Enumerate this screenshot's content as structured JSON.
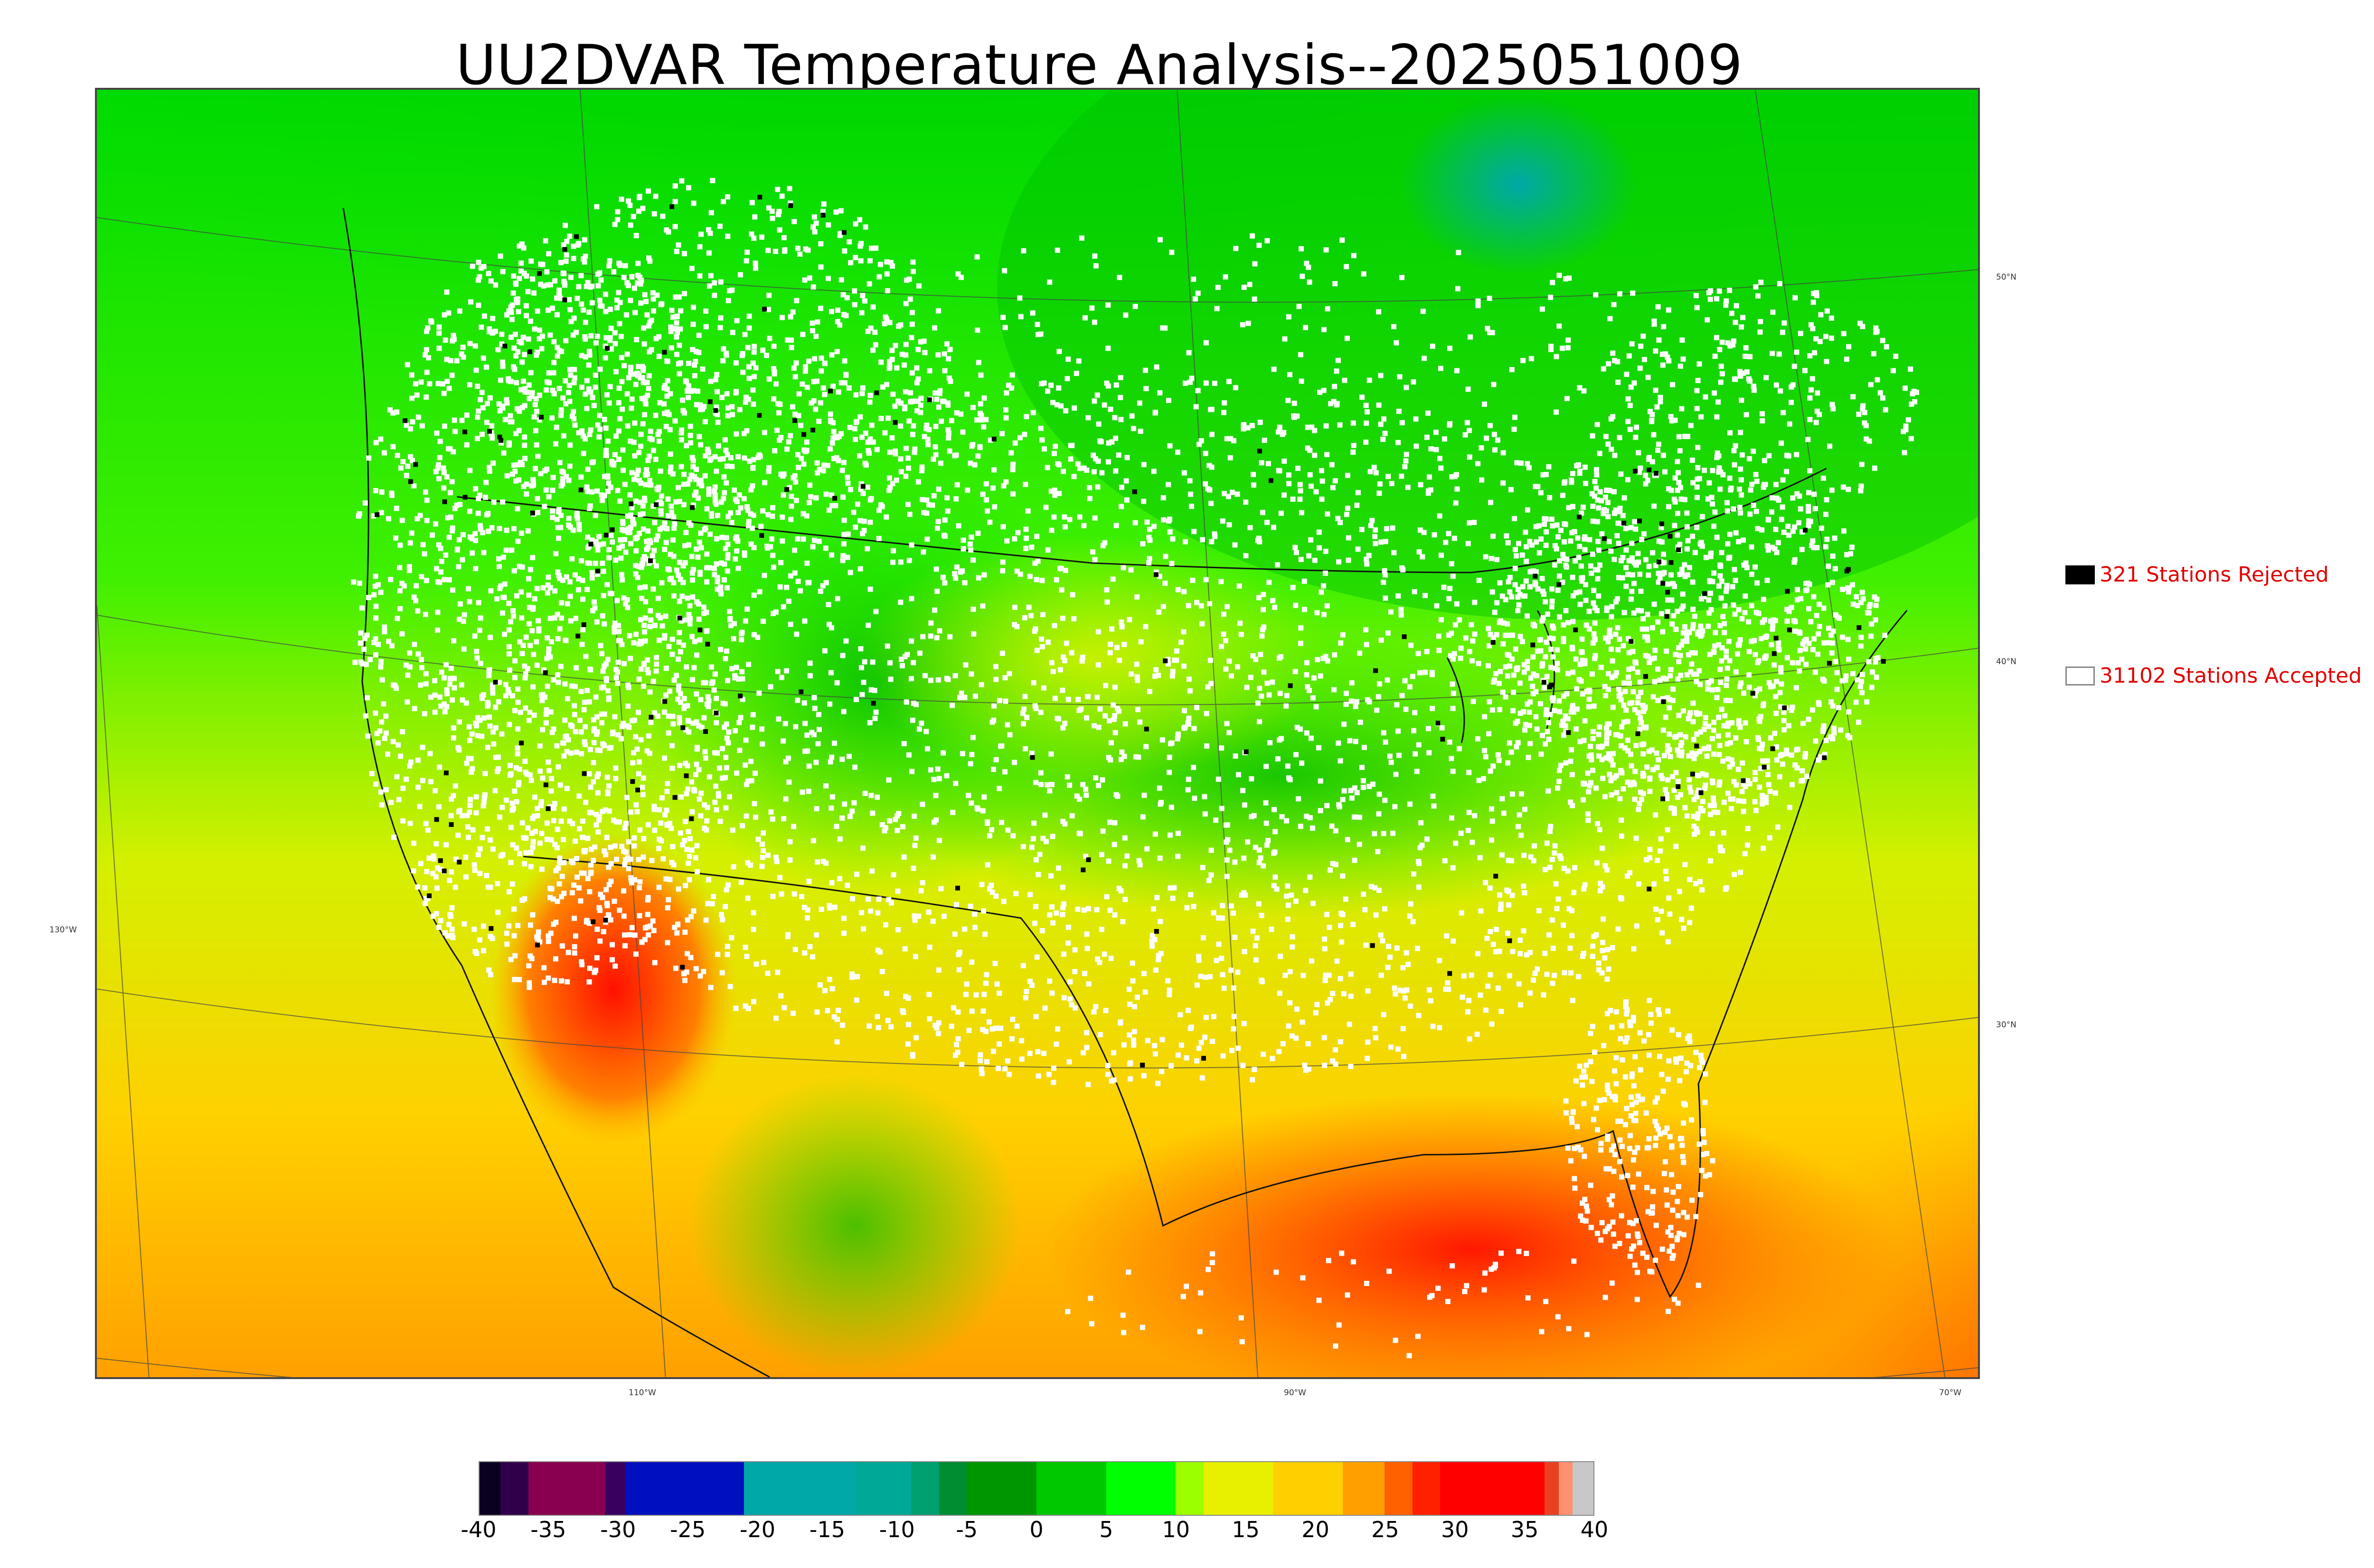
{
  "title": "UU2DVAR Temperature Analysis--2025051009",
  "legend": {
    "rejected": {
      "label": "321 Stations Rejected",
      "swatch_color": "#000000"
    },
    "accepted": {
      "label": "31102 Stations Accepted",
      "swatch_color": "#ffffff"
    }
  },
  "map": {
    "lon_labels": [
      "130°W",
      "110°W",
      "90°W",
      "70°W"
    ],
    "lat_labels": [
      "50°N",
      "40°N",
      "30°N"
    ],
    "colors": {
      "cold_green": "#00b400",
      "mid_green": "#00e600",
      "yellow": "#d4f000",
      "orange": "#ffb000",
      "red": "#ff2a00",
      "teal": "#00a8a8"
    }
  },
  "colorbar": {
    "ticks": [
      "-40",
      "-35",
      "-30",
      "-25",
      "-20",
      "-15",
      "-10",
      "-5",
      "0",
      "5",
      "10",
      "15",
      "20",
      "25",
      "30",
      "35",
      "40"
    ],
    "segments": [
      {
        "from": -40,
        "to": -38.5,
        "color": "#0a0020"
      },
      {
        "from": -38.5,
        "to": -36.5,
        "color": "#30004a"
      },
      {
        "from": -36.5,
        "to": -31,
        "color": "#8a0050"
      },
      {
        "from": -31,
        "to": -29.5,
        "color": "#3a0060"
      },
      {
        "from": -29.5,
        "to": -21,
        "color": "#0010c0"
      },
      {
        "from": -21,
        "to": -13,
        "color": "#00a8a8"
      },
      {
        "from": -13,
        "to": -9,
        "color": "#00a898"
      },
      {
        "from": -9,
        "to": -7,
        "color": "#00a070"
      },
      {
        "from": -7,
        "to": -5,
        "color": "#008c30"
      },
      {
        "from": -5,
        "to": 0,
        "color": "#009600"
      },
      {
        "from": 0,
        "to": 5,
        "color": "#00c800"
      },
      {
        "from": 5,
        "to": 10,
        "color": "#00ff00"
      },
      {
        "from": 10,
        "to": 12,
        "color": "#9cff00"
      },
      {
        "from": 12,
        "to": 17,
        "color": "#e8f000"
      },
      {
        "from": 17,
        "to": 22,
        "color": "#ffd000"
      },
      {
        "from": 22,
        "to": 25,
        "color": "#ffa000"
      },
      {
        "from": 25,
        "to": 27,
        "color": "#ff6000"
      },
      {
        "from": 27,
        "to": 29,
        "color": "#ff2000"
      },
      {
        "from": 29,
        "to": 36.5,
        "color": "#ff0000"
      },
      {
        "from": 36.5,
        "to": 37.5,
        "color": "#e84020"
      },
      {
        "from": 37.5,
        "to": 38.5,
        "color": "#ff9070"
      },
      {
        "from": 38.5,
        "to": 40,
        "color": "#c8c8c8"
      }
    ]
  }
}
